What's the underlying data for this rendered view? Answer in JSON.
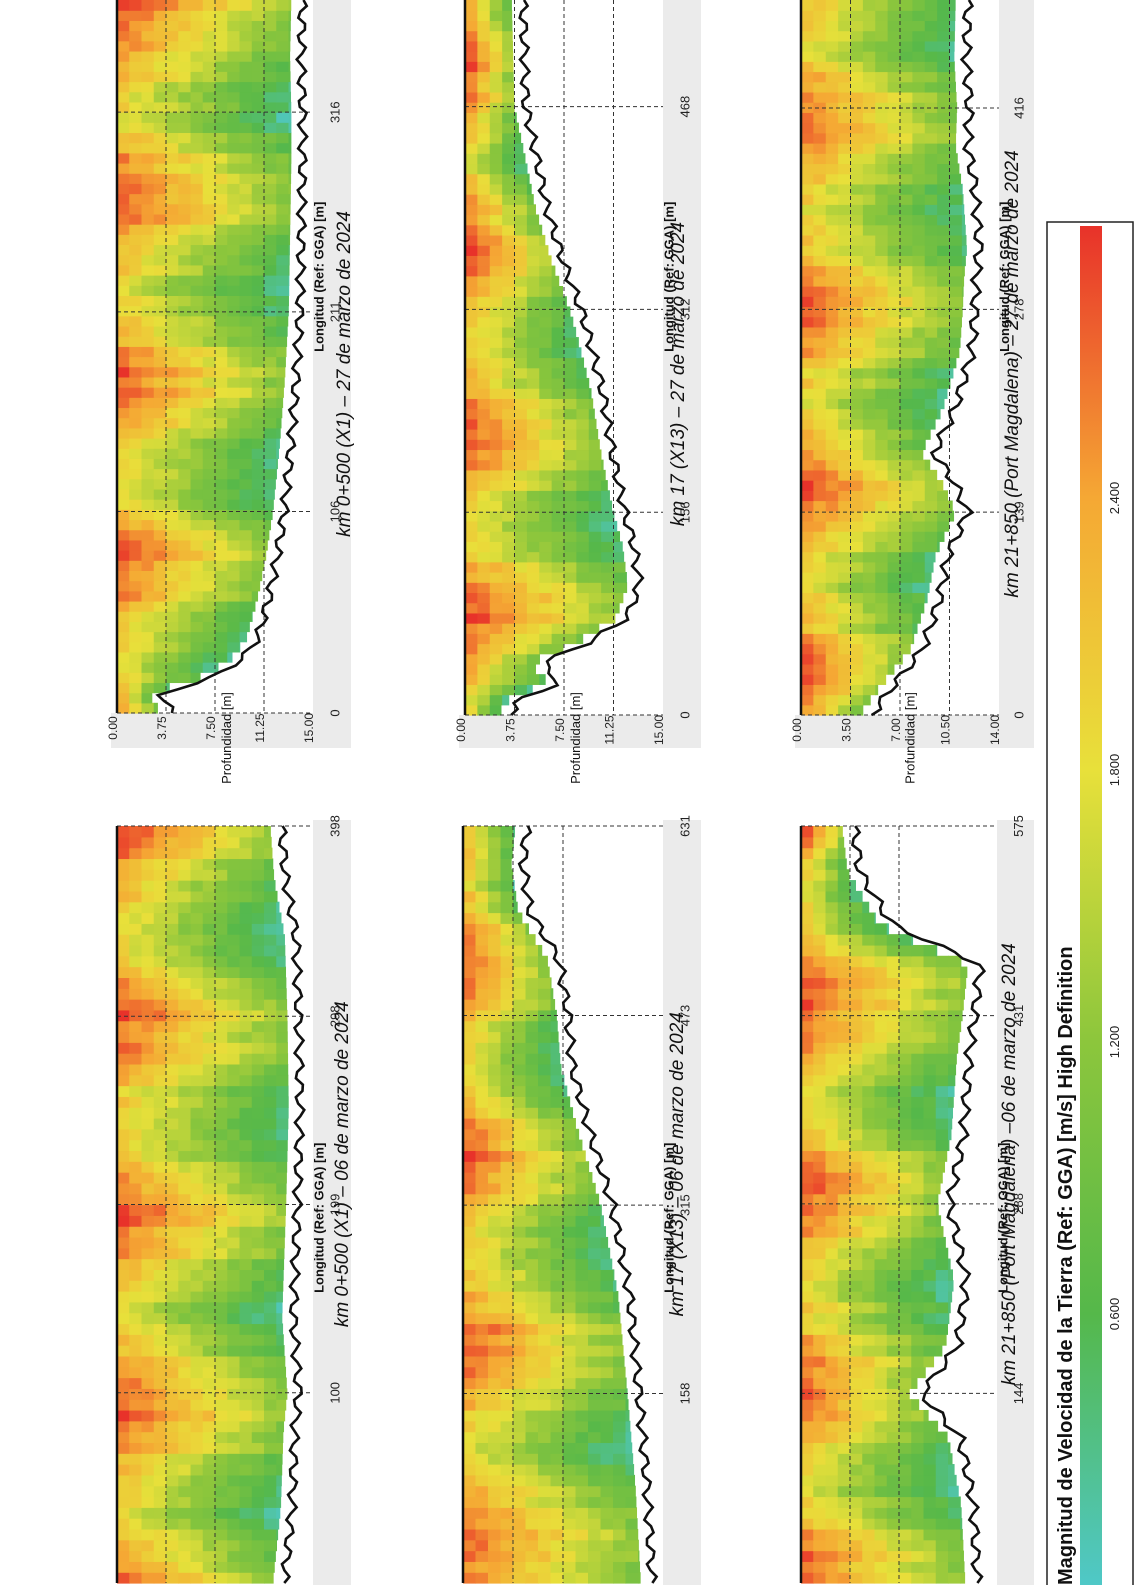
{
  "common": {
    "y_axis_label": "Profundidad [m]",
    "x_axis_label": "Longitud (Ref: GGA) [m]"
  },
  "legend": {
    "title": "Magnitud de Velocidad de la Tierra (Ref: GGA) [m/s] High Definition",
    "ticks": [
      "0.600",
      "1.200",
      "1.800",
      "2.400"
    ],
    "tick_values": [
      0.6,
      1.2,
      1.8,
      2.4
    ],
    "range": [
      0.0,
      3.0
    ],
    "colors": [
      "#4fc8c8",
      "#55b84a",
      "#8cc63c",
      "#e8e03a",
      "#f5a834",
      "#e8322a"
    ]
  },
  "chart_data": [
    {
      "type": "heatmap",
      "title": "km 0+500 (X1) – 27 de marzo de 2024",
      "xlabel": "Longitud (Ref: GGA) [m]",
      "ylabel": "Profundidad [m]",
      "x_ticks": [
        "0",
        "106",
        "211",
        "316"
      ],
      "x_tick_values": [
        0,
        106,
        211,
        316
      ],
      "xlim": [
        0,
        375
      ],
      "y_ticks": [
        "0.00",
        "3.75",
        "7.50",
        "11.25",
        "15.00"
      ],
      "y_tick_values": [
        0,
        3.75,
        7.5,
        11.25,
        15.0
      ],
      "ylim": [
        0,
        15
      ],
      "bed_profile": {
        "x": [
          0,
          10,
          20,
          30,
          40,
          60,
          80,
          106,
          140,
          175,
          211,
          250,
          290,
          316,
          345,
          375
        ],
        "depth": [
          4.2,
          3.4,
          7.8,
          9.8,
          10.8,
          11.6,
          12.2,
          12.8,
          13.3,
          13.7,
          14.0,
          14.1,
          14.2,
          14.2,
          14.1,
          14.2
        ]
      },
      "grid": true
    },
    {
      "type": "heatmap",
      "title": "km 17 (X13) – 27 de marzo de 2024",
      "xlabel": "Longitud (Ref: GGA) [m]",
      "ylabel": "Profundidad [m]",
      "x_ticks": [
        "0",
        "156",
        "312",
        "468"
      ],
      "x_tick_values": [
        0,
        156,
        312,
        468
      ],
      "xlim": [
        0,
        550
      ],
      "y_ticks": [
        "0.00",
        "3.75",
        "7.50",
        "11.25",
        "15.00"
      ],
      "y_tick_values": [
        0,
        3.75,
        7.5,
        11.25,
        15.0
      ],
      "ylim": [
        0,
        15
      ],
      "bed_profile": {
        "x": [
          0,
          10,
          25,
          40,
          55,
          75,
          100,
          130,
          156,
          200,
          250,
          290,
          312,
          350,
          390,
          430,
          468,
          510,
          550
        ],
        "depth": [
          3.5,
          3.8,
          7.2,
          5.8,
          9.2,
          12.3,
          13.2,
          12.8,
          12.1,
          11.2,
          10.4,
          9.4,
          8.8,
          7.4,
          6.2,
          5.4,
          4.6,
          4.5,
          4.4
        ]
      },
      "grid": true
    },
    {
      "type": "heatmap",
      "title": "km 21+850 (Port Magdalena) – 27 de marzo de 2024",
      "xlabel": "Longitud (Ref: GGA) [m]",
      "ylabel": "Profundidad [m]",
      "x_ticks": [
        "0",
        "139",
        "278",
        "416"
      ],
      "x_tick_values": [
        0,
        139,
        278,
        416
      ],
      "xlim": [
        0,
        490
      ],
      "y_ticks": [
        "0.00",
        "3.50",
        "7.00",
        "10.50",
        "14.00"
      ],
      "y_tick_values": [
        0,
        3.5,
        7.0,
        10.5,
        14.0
      ],
      "ylim": [
        0,
        14
      ],
      "bed_profile": {
        "x": [
          0,
          20,
          45,
          80,
          110,
          139,
          160,
          180,
          210,
          250,
          278,
          300,
          320,
          360,
          390,
          416,
          450,
          490
        ],
        "depth": [
          5.0,
          6.5,
          8.6,
          9.8,
          10.4,
          11.8,
          10.8,
          9.4,
          10.9,
          12.1,
          12.3,
          12.4,
          12.6,
          12.3,
          11.8,
          11.9,
          11.7,
          11.8
        ]
      },
      "grid": true
    },
    {
      "type": "heatmap",
      "title": "km 0+500 (X1) – 06 de marzo de 2024",
      "xlabel": "Longitud (Ref: GGA) [m]",
      "ylabel": "",
      "x_ticks": [
        "100",
        "199",
        "298",
        "398"
      ],
      "x_tick_values": [
        100,
        199,
        298,
        398
      ],
      "xlim": [
        0,
        398
      ],
      "ylim": [
        0,
        15
      ],
      "bed_profile": {
        "x": [
          0,
          40,
          80,
          100,
          140,
          199,
          250,
          298,
          340,
          370,
          398
        ],
        "depth": [
          12.8,
          13.4,
          13.6,
          13.9,
          13.5,
          13.8,
          14.0,
          13.9,
          13.7,
          12.9,
          12.6
        ]
      },
      "grid": true
    },
    {
      "type": "heatmap",
      "title": "km 17 (X13) – 06 de marzo de 2024",
      "xlabel": "Longitud (Ref: GGA) [m]",
      "ylabel": "",
      "x_ticks": [
        "158",
        "315",
        "473",
        "631"
      ],
      "x_tick_values": [
        158,
        315,
        473,
        631
      ],
      "xlim": [
        0,
        631
      ],
      "ylim": [
        0,
        15
      ],
      "bed_profile": {
        "x": [
          0,
          80,
          158,
          240,
          315,
          380,
          430,
          473,
          520,
          560,
          600,
          631
        ],
        "depth": [
          14.2,
          13.8,
          13.2,
          12.5,
          11.2,
          9.4,
          8.2,
          7.9,
          7.2,
          5.0,
          4.5,
          4.8
        ]
      },
      "grid": true
    },
    {
      "type": "heatmap",
      "title": "km 21+850 (Port Magdalena) –06 de marzo de 2024",
      "xlabel": "Longitud (Ref: GGA) [m]",
      "ylabel": "",
      "x_ticks": [
        "144",
        "288",
        "431",
        "575"
      ],
      "x_tick_values": [
        144,
        288,
        431,
        575
      ],
      "xlim": [
        0,
        575
      ],
      "ylim": [
        0,
        14
      ],
      "bed_profile": {
        "x": [
          0,
          60,
          110,
          144,
          180,
          230,
          288,
          340,
          400,
          431,
          470,
          500,
          540,
          575
        ],
        "depth": [
          12.6,
          12.3,
          11.4,
          8.6,
          11.2,
          11.8,
          10.6,
          11.6,
          12.0,
          12.4,
          12.8,
          6.5,
          4.2,
          3.8
        ]
      },
      "grid": true
    }
  ]
}
